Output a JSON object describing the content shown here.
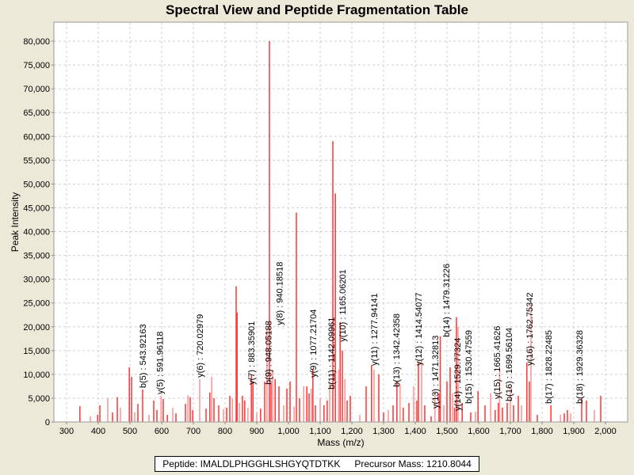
{
  "chart_data": {
    "type": "bar",
    "title": "Spectral View and Peptide Fragmentation Table",
    "xlabel": "Mass (m/z)",
    "ylabel": "Peak Intensity",
    "xlim": [
      260,
      2070
    ],
    "ylim": [
      0,
      84000
    ],
    "xticks": [
      300,
      400,
      500,
      600,
      700,
      800,
      900,
      1000,
      1100,
      1200,
      1300,
      1400,
      1500,
      1600,
      1700,
      1800,
      1900,
      2000
    ],
    "xtick_labels": [
      "300",
      "400",
      "500",
      "600",
      "700",
      "800",
      "900",
      "1,000",
      "1,100",
      "1,200",
      "1,300",
      "1,400",
      "1,500",
      "1,600",
      "1,700",
      "1,800",
      "1,900",
      "2,000"
    ],
    "yticks": [
      0,
      5000,
      10000,
      15000,
      20000,
      25000,
      30000,
      35000,
      40000,
      45000,
      50000,
      55000,
      60000,
      65000,
      70000,
      75000,
      80000
    ],
    "ytick_labels": [
      "0",
      "5,000",
      "10,000",
      "15,000",
      "20,000",
      "25,000",
      "30,000",
      "35,000",
      "40,000",
      "45,000",
      "50,000",
      "55,000",
      "60,000",
      "65,000",
      "70,000",
      "75,000",
      "80,000"
    ],
    "grid": true,
    "peaks": [
      [
        342,
        3300
      ],
      [
        375,
        1200
      ],
      [
        398,
        1500
      ],
      [
        405,
        3500
      ],
      [
        430,
        5000
      ],
      [
        445,
        2000
      ],
      [
        460,
        5200
      ],
      [
        470,
        3000
      ],
      [
        498,
        11500
      ],
      [
        505,
        9500
      ],
      [
        515,
        2000
      ],
      [
        525,
        3800
      ],
      [
        540,
        6800
      ],
      [
        560,
        1500
      ],
      [
        575,
        4500
      ],
      [
        585,
        2500
      ],
      [
        598,
        5500
      ],
      [
        605,
        4800
      ],
      [
        618,
        1500
      ],
      [
        635,
        3000
      ],
      [
        645,
        1800
      ],
      [
        675,
        3800
      ],
      [
        683,
        5600
      ],
      [
        690,
        5200
      ],
      [
        698,
        2500
      ],
      [
        720,
        9000
      ],
      [
        740,
        2800
      ],
      [
        752,
        6200
      ],
      [
        758,
        9500
      ],
      [
        765,
        5000
      ],
      [
        780,
        3500
      ],
      [
        795,
        2700
      ],
      [
        805,
        3000
      ],
      [
        815,
        5500
      ],
      [
        823,
        5000
      ],
      [
        835,
        28500
      ],
      [
        838,
        23000
      ],
      [
        845,
        4000
      ],
      [
        855,
        5500
      ],
      [
        862,
        4500
      ],
      [
        872,
        3000
      ],
      [
        883,
        10000
      ],
      [
        888,
        8500
      ],
      [
        900,
        2000
      ],
      [
        912,
        2800
      ],
      [
        925,
        8500
      ],
      [
        932,
        19500
      ],
      [
        940,
        80000
      ],
      [
        945,
        8000
      ],
      [
        950,
        11000
      ],
      [
        958,
        9000
      ],
      [
        970,
        7500
      ],
      [
        985,
        3500
      ],
      [
        995,
        7000
      ],
      [
        1005,
        8500
      ],
      [
        1018,
        3200
      ],
      [
        1025,
        44000
      ],
      [
        1035,
        5000
      ],
      [
        1048,
        7500
      ],
      [
        1058,
        7500
      ],
      [
        1065,
        6000
      ],
      [
        1072,
        7000
      ],
      [
        1077,
        11000
      ],
      [
        1085,
        3500
      ],
      [
        1100,
        5000
      ],
      [
        1112,
        3500
      ],
      [
        1122,
        4500
      ],
      [
        1130,
        8500
      ],
      [
        1140,
        59000
      ],
      [
        1148,
        48000
      ],
      [
        1158,
        11000
      ],
      [
        1163,
        21000
      ],
      [
        1170,
        15000
      ],
      [
        1178,
        9000
      ],
      [
        1185,
        4500
      ],
      [
        1195,
        5500
      ],
      [
        1225,
        1500
      ],
      [
        1245,
        7500
      ],
      [
        1262,
        12000
      ],
      [
        1270,
        11000
      ],
      [
        1285,
        10000
      ],
      [
        1300,
        2000
      ],
      [
        1315,
        2500
      ],
      [
        1330,
        3500
      ],
      [
        1342,
        8500
      ],
      [
        1352,
        8000
      ],
      [
        1362,
        3000
      ],
      [
        1380,
        4000
      ],
      [
        1395,
        7500
      ],
      [
        1405,
        4500
      ],
      [
        1410,
        12500
      ],
      [
        1420,
        13000
      ],
      [
        1430,
        3500
      ],
      [
        1450,
        1200
      ],
      [
        1462,
        6500
      ],
      [
        1475,
        6000
      ],
      [
        1479,
        18000
      ],
      [
        1490,
        3500
      ],
      [
        1500,
        8500
      ],
      [
        1510,
        11500
      ],
      [
        1518,
        6000
      ],
      [
        1524,
        3000
      ],
      [
        1530,
        22000
      ],
      [
        1535,
        20000
      ],
      [
        1548,
        4000
      ],
      [
        1575,
        2000
      ],
      [
        1590,
        2200
      ],
      [
        1598,
        6500
      ],
      [
        1620,
        3500
      ],
      [
        1638,
        6000
      ],
      [
        1652,
        2500
      ],
      [
        1662,
        4000
      ],
      [
        1666,
        11000
      ],
      [
        1675,
        3000
      ],
      [
        1690,
        4000
      ],
      [
        1700,
        7500
      ],
      [
        1710,
        3500
      ],
      [
        1725,
        5500
      ],
      [
        1735,
        3500
      ],
      [
        1752,
        12500
      ],
      [
        1760,
        8500
      ],
      [
        1765,
        25000
      ],
      [
        1785,
        1500
      ],
      [
        1828,
        3500
      ],
      [
        1858,
        1500
      ],
      [
        1870,
        1800
      ],
      [
        1880,
        2500
      ],
      [
        1890,
        1800
      ],
      [
        1925,
        5000
      ],
      [
        1940,
        4500
      ],
      [
        1965,
        2500
      ],
      [
        1985,
        5500
      ]
    ],
    "annotations": [
      {
        "label": "b(5) : 543.92163",
        "mass": 540,
        "y": 6800
      },
      {
        "label": "y(5) : 591.96118",
        "mass": 594,
        "y": 5500
      },
      {
        "label": "y(6) : 720.02979",
        "mass": 720,
        "y": 9000
      },
      {
        "label": "y(7) : 883.35901",
        "mass": 883,
        "y": 7500
      },
      {
        "label": "b(9) : 948.05188",
        "mass": 936,
        "y": 7500
      },
      {
        "label": "y(8) : 940.18518",
        "mass": 944,
        "y": 20000
      },
      {
        "label": "y(9) : 1077.21704",
        "mass": 1077,
        "y": 9000
      },
      {
        "label": "b(11) : 1142.09961",
        "mass": 1135,
        "y": 6500
      },
      {
        "label": "y(10) : 1165.06201",
        "mass": 1148,
        "y": 16500
      },
      {
        "label": "y(11) : 1277.94141",
        "mass": 1270,
        "y": 11500
      },
      {
        "label": "b(13) : 1342.42358",
        "mass": 1340,
        "y": 7000
      },
      {
        "label": "y(12) : 1414.54077",
        "mass": 1410,
        "y": 11500
      },
      {
        "label": "y(13) : 1471.32813",
        "mass": 1462,
        "y": 2500
      },
      {
        "label": "b(14) : 1479.31226",
        "mass": 1480,
        "y": 17500
      },
      {
        "label": "y(14) : 1529.77324",
        "mass": 1512,
        "y": 2000
      },
      {
        "label": "b(15) : 1530.47559",
        "mass": 1522,
        "y": 3500
      },
      {
        "label": "y(15) : 1665.41626",
        "mass": 1658,
        "y": 4500
      },
      {
        "label": "b(16) : 1699.56104",
        "mass": 1695,
        "y": 4000
      },
      {
        "label": "y(16) : 1762.75342",
        "mass": 1760,
        "y": 11500
      },
      {
        "label": "b(17) : 1828.22485",
        "mass": 1820,
        "y": 3500
      },
      {
        "label": "b(18) : 1929.36328",
        "mass": 1918,
        "y": 3500
      }
    ],
    "bar_color": "#ff4040",
    "bar_color_light": "#ff9a9a"
  },
  "legend": {
    "peptide": "Peptide: IMALDLPHGGHLSHGYQTDTKK",
    "precursor": "Precursor Mass: 1210.8044"
  }
}
